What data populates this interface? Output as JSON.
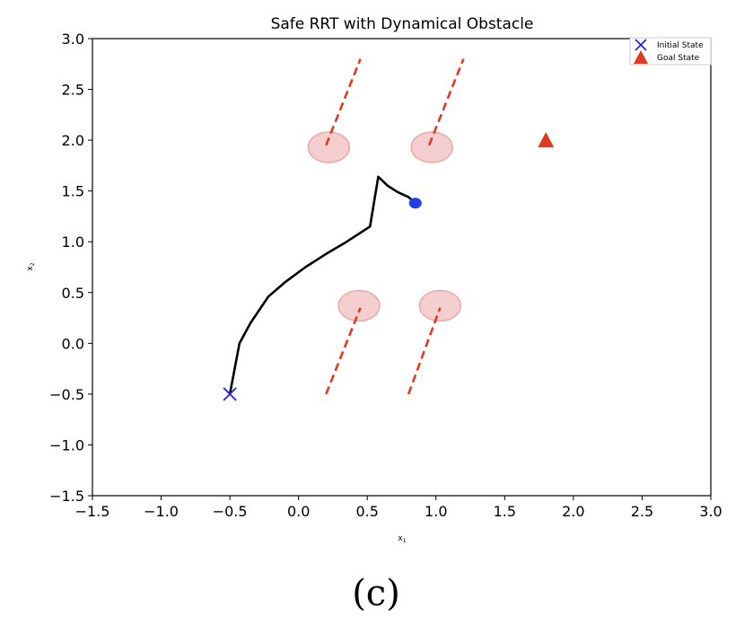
{
  "chart_data": {
    "type": "line",
    "title": "Safe RRT with Dynamical Obstacle",
    "xlabel": "x1",
    "ylabel": "x2",
    "xlim": [
      -1.5,
      3.0
    ],
    "ylim": [
      -1.5,
      3.0
    ],
    "xticks": [
      -1.5,
      -1.0,
      -0.5,
      0.0,
      0.5,
      1.0,
      1.5,
      2.0,
      2.5,
      3.0
    ],
    "yticks": [
      -1.5,
      -1.0,
      -0.5,
      0.0,
      0.5,
      1.0,
      1.5,
      2.0,
      2.5,
      3.0
    ],
    "xtick_labels": [
      "−1.5",
      "−1.0",
      "−0.5",
      "0.0",
      "0.5",
      "1.0",
      "1.5",
      "2.0",
      "2.5",
      "3.0"
    ],
    "ytick_labels": [
      "−1.5",
      "−1.0",
      "−0.5",
      "0.0",
      "0.5",
      "1.0",
      "1.5",
      "2.0",
      "2.5",
      "3.0"
    ],
    "grid": false,
    "legend_position": "top-right",
    "legend": [
      {
        "label": "Initial State",
        "marker": "x",
        "color": "#1f1fe6"
      },
      {
        "label": "Goal State",
        "marker": "triangle",
        "color": "#e23a22"
      }
    ],
    "initial_state": {
      "x": -0.5,
      "y": -0.5
    },
    "goal_state": {
      "x": 1.8,
      "y": 2.0
    },
    "trajectory": {
      "color": "#000000",
      "points": [
        [
          -0.5,
          -0.5
        ],
        [
          -0.43,
          0.0
        ],
        [
          -0.35,
          0.2
        ],
        [
          -0.22,
          0.46
        ],
        [
          -0.1,
          0.6
        ],
        [
          0.05,
          0.75
        ],
        [
          0.2,
          0.88
        ],
        [
          0.35,
          1.0
        ],
        [
          0.52,
          1.15
        ],
        [
          0.58,
          1.64
        ],
        [
          0.65,
          1.55
        ],
        [
          0.72,
          1.49
        ],
        [
          0.8,
          1.44
        ],
        [
          0.85,
          1.38
        ]
      ]
    },
    "current_position": {
      "x": 0.85,
      "y": 1.38,
      "color": "#1f3fe6"
    },
    "obstacles": [
      {
        "x": 0.22,
        "y": 1.93,
        "rx": 0.15,
        "ry": 0.15,
        "color": "#eda7a7"
      },
      {
        "x": 0.97,
        "y": 1.93,
        "rx": 0.15,
        "ry": 0.15,
        "color": "#eda7a7"
      },
      {
        "x": 0.44,
        "y": 0.37,
        "rx": 0.15,
        "ry": 0.15,
        "color": "#eda7a7"
      },
      {
        "x": 1.03,
        "y": 0.37,
        "rx": 0.15,
        "ry": 0.15,
        "color": "#eda7a7"
      }
    ],
    "obstacle_paths": {
      "color": "#e23a22",
      "segments": [
        [
          [
            0.2,
            1.95
          ],
          [
            0.45,
            2.8
          ]
        ],
        [
          [
            0.95,
            1.95
          ],
          [
            1.2,
            2.8
          ]
        ],
        [
          [
            0.2,
            -0.5
          ],
          [
            0.45,
            0.35
          ]
        ],
        [
          [
            0.8,
            -0.5
          ],
          [
            1.03,
            0.35
          ]
        ]
      ]
    }
  },
  "caption": "(c)"
}
